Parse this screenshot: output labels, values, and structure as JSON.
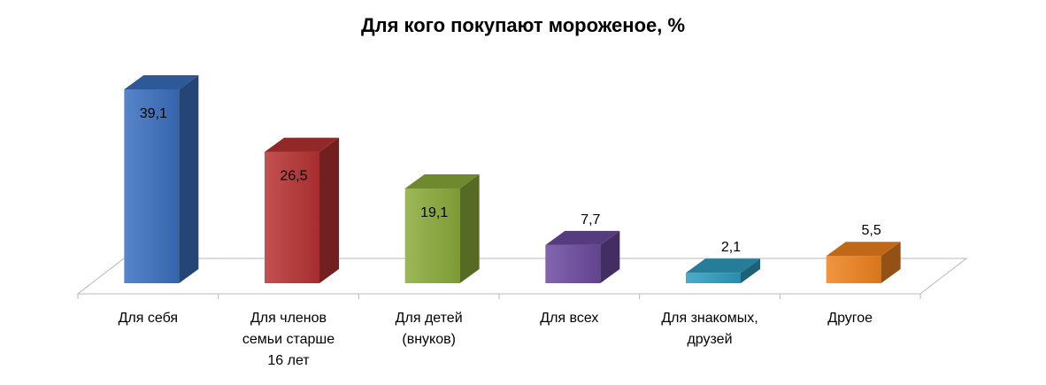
{
  "chart_data": {
    "type": "bar",
    "title": "Для кого покупают мороженое, %",
    "categories": [
      [
        "Для себя"
      ],
      [
        "Для членов",
        "семьи старше",
        "16 лет"
      ],
      [
        "Для детей",
        "(внуков)"
      ],
      [
        "Для всех"
      ],
      [
        "Для знакомых,",
        "друзей"
      ],
      [
        "Другое"
      ]
    ],
    "values": [
      39.1,
      26.5,
      19.1,
      7.7,
      2.1,
      5.5
    ],
    "value_labels": [
      "39,1",
      "26,5",
      "19,1",
      "7,7",
      "2,1",
      "5,5"
    ],
    "colors": [
      "#3a6fbf",
      "#b83232",
      "#8aab3a",
      "#6c4aa0",
      "#2e9cc0",
      "#f0821e"
    ],
    "ylim": [
      0,
      42
    ],
    "style": "3d-columns",
    "grid": false,
    "legend": "none"
  }
}
